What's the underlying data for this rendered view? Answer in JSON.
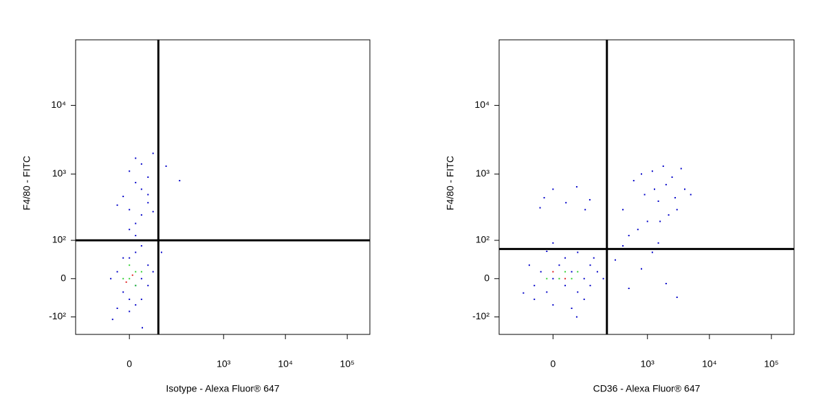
{
  "chart_data": [
    {
      "type": "scatter",
      "x_label": "Isotype - Alexa Fluor® 647",
      "y_label": "F4/80 - FITC",
      "xscale": "biexponential",
      "yscale": "biexponential",
      "xlim": [
        -218,
        232000
      ],
      "ylim": [
        -190,
        90000
      ],
      "xticks": [
        0,
        {
          "value": 1000,
          "label": "10³"
        },
        {
          "value": 10000,
          "label": "10⁴"
        },
        {
          "value": 100000,
          "label": "10⁵"
        }
      ],
      "yticks": [
        {
          "value": -100,
          "label": "-10²"
        },
        0,
        {
          "value": 100,
          "label": "10²"
        },
        {
          "value": 1000,
          "label": "10³"
        },
        {
          "value": 10000,
          "label": "10⁴"
        }
      ],
      "gate": {
        "x": 78,
        "y": 100
      },
      "points": [
        {
          "color": "#0000c8",
          "x": [
            -14,
            0,
            14,
            28,
            -28,
            45,
            0,
            14,
            28,
            -45,
            45,
            14,
            -14,
            60,
            0,
            28,
            -28,
            45,
            14,
            0,
            14,
            28,
            0,
            45,
            -14,
            28,
            14,
            45,
            0,
            28,
            60,
            14,
            45,
            -28,
            60,
            110,
            190,
            30,
            90,
            -40
          ],
          "y": [
            -28,
            -45,
            -14,
            0,
            14,
            28,
            45,
            60,
            -45,
            0,
            -14,
            -60,
            45,
            14,
            -80,
            80,
            -70,
            100,
            120,
            150,
            186,
            250,
            300,
            380,
            470,
            600,
            750,
            900,
            1100,
            1400,
            2000,
            1700,
            500,
            350,
            280,
            1300,
            800,
            -150,
            60,
            -110
          ]
        },
        {
          "color": "#30d030",
          "x": [
            0,
            14,
            -14,
            14,
            0,
            28
          ],
          "y": [
            0,
            14,
            0,
            -14,
            28,
            14
          ]
        },
        {
          "color": "#e02020",
          "x": [
            7,
            -7
          ],
          "y": [
            7,
            -7
          ]
        }
      ]
    },
    {
      "type": "scatter",
      "x_label": "CD36 - Alexa Fluor® 647",
      "y_label": "F4/80 - FITC",
      "xscale": "biexponential",
      "yscale": "biexponential",
      "xlim": [
        -218,
        232000
      ],
      "ylim": [
        -190,
        90000
      ],
      "xticks": [
        0,
        {
          "value": 1000,
          "label": "10³"
        },
        {
          "value": 10000,
          "label": "10⁴"
        },
        {
          "value": 100000,
          "label": "10⁵"
        }
      ],
      "yticks": [
        {
          "value": -100,
          "label": "-10²"
        },
        0,
        {
          "value": 100,
          "label": "10²"
        },
        {
          "value": 1000,
          "label": "10³"
        },
        {
          "value": 10000,
          "label": "10⁴"
        }
      ],
      "gate": {
        "x": 218,
        "y": 70
      },
      "points": [
        {
          "color": "#0000c8",
          "x": [
            -45,
            -28,
            -14,
            0,
            14,
            28,
            45,
            63,
            86,
            112,
            -60,
            -45,
            0,
            28,
            63,
            86,
            112,
            150,
            -14,
            45,
            -80,
            130,
            0,
            60,
            190,
            -20,
            0,
            30,
            60,
            90,
            -30,
            110,
            400,
            600,
            900,
            1200,
            1500,
            2000,
            2500,
            3000,
            4000,
            1000,
            700,
            1800,
            2200,
            5000,
            800,
            1300,
            3500,
            500,
            1600,
            2800,
            300,
            500,
            800,
            1200,
            2000,
            3000,
            400,
            1500
          ],
          "y": [
            -14,
            14,
            -28,
            0,
            28,
            -14,
            14,
            -28,
            0,
            28,
            28,
            -45,
            -60,
            45,
            60,
            -45,
            -14,
            14,
            63,
            -70,
            -30,
            45,
            90,
            -100,
            0,
            450,
            600,
            380,
            650,
            300,
            320,
            420,
            300,
            800,
            500,
            1100,
            400,
            700,
            900,
            300,
            600,
            200,
            150,
            1300,
            250,
            500,
            1000,
            600,
            1200,
            120,
            200,
            450,
            40,
            -20,
            20,
            60,
            -10,
            -40,
            80,
            90
          ]
        },
        {
          "color": "#30d030",
          "x": [
            14,
            45,
            28,
            63,
            -14
          ],
          "y": [
            0,
            0,
            14,
            14,
            0
          ]
        },
        {
          "color": "#e02020",
          "x": [
            28,
            0
          ],
          "y": [
            0,
            14
          ]
        }
      ]
    }
  ]
}
